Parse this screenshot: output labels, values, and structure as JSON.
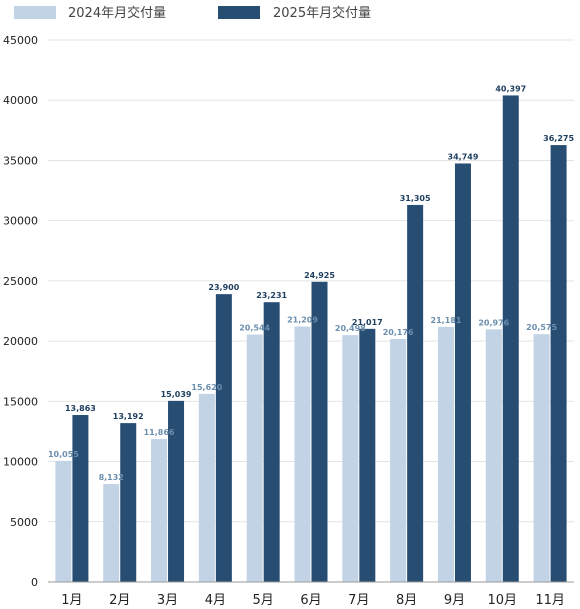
{
  "colors": {
    "series_2024": "#c2d3e6",
    "series_2025": "#274d72",
    "grid": "#e4e4e4",
    "axis": "#9a9a9a"
  },
  "chart_data": {
    "type": "bar",
    "title": "",
    "xlabel": "",
    "ylabel": "",
    "categories": [
      "1月",
      "2月",
      "3月",
      "4月",
      "5月",
      "6月",
      "7月",
      "8月",
      "9月",
      "10月",
      "11月"
    ],
    "series": [
      {
        "name": "2024年月交付量",
        "values": [
          10055,
          8132,
          11866,
          15620,
          20544,
          21209,
          20498,
          20176,
          21181,
          20976,
          20575
        ],
        "labels": [
          "10,055",
          "8,132",
          "11,866",
          "15,620",
          "20,544",
          "21,209",
          "20,498",
          "20,176",
          "21,181",
          "20,976",
          "20,575"
        ]
      },
      {
        "name": "2025年月交付量",
        "values": [
          13863,
          13192,
          15039,
          23900,
          23231,
          24925,
          21017,
          31305,
          34749,
          40397,
          36275
        ],
        "labels": [
          "13,863",
          "13,192",
          "15,039",
          "23,900",
          "23,231",
          "24,925",
          "21,017",
          "31,305",
          "34,749",
          "40,397",
          "36,275"
        ]
      }
    ],
    "ylim": [
      0,
      45000
    ],
    "yticks": [
      "0",
      "5000",
      "10000",
      "15000",
      "20000",
      "25000",
      "30000",
      "35000",
      "40000",
      "45000"
    ],
    "grid": true,
    "legend_position": "top-left"
  }
}
